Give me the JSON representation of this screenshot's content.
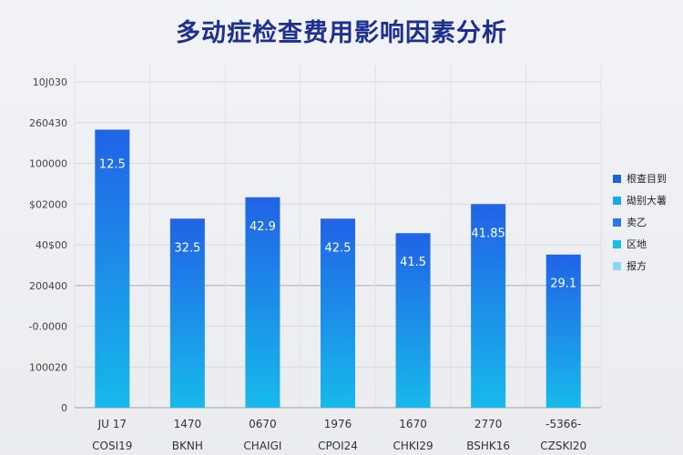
{
  "chart_data": {
    "type": "bar",
    "title": "多动症检查费用影响因素分析",
    "xlabel": "",
    "ylabel": "",
    "y_tick_labels": [
      "10J030",
      "260430",
      "100000",
      "$02000",
      "40$00",
      "200400",
      "-0.0000",
      "100020",
      "0"
    ],
    "categories": [
      {
        "top": "JU 17",
        "bottom": "COSI19"
      },
      {
        "top": "1470",
        "bottom": "BKNH"
      },
      {
        "top": "0670",
        "bottom": "CHAIGI"
      },
      {
        "top": "1976",
        "bottom": "CPOI24"
      },
      {
        "top": "1670",
        "bottom": "CHKI29"
      },
      {
        "top": "2770",
        "bottom": "BSHK16"
      },
      {
        "top": "-5366-",
        "bottom": "CZSKI20"
      }
    ],
    "values": [
      325,
      221,
      246,
      221,
      204,
      238,
      179
    ],
    "data_labels": [
      "12.5",
      "32.5",
      "42.9",
      "42.5",
      "41.5",
      "41.85",
      "29.1"
    ],
    "ylim": [
      0,
      400
    ],
    "grid": true,
    "legend_position": "right",
    "legend": [
      "根查目到",
      "䂶别大薯",
      "卖乙",
      "区地",
      "报方"
    ],
    "colors": {
      "bar_top": "#2163e6",
      "bar_bottom": "#17b9eb",
      "legend": [
        "#1f63d8",
        "#1aa8ec",
        "#2a78e8",
        "#15c0e4",
        "#8fd3f2"
      ]
    }
  }
}
